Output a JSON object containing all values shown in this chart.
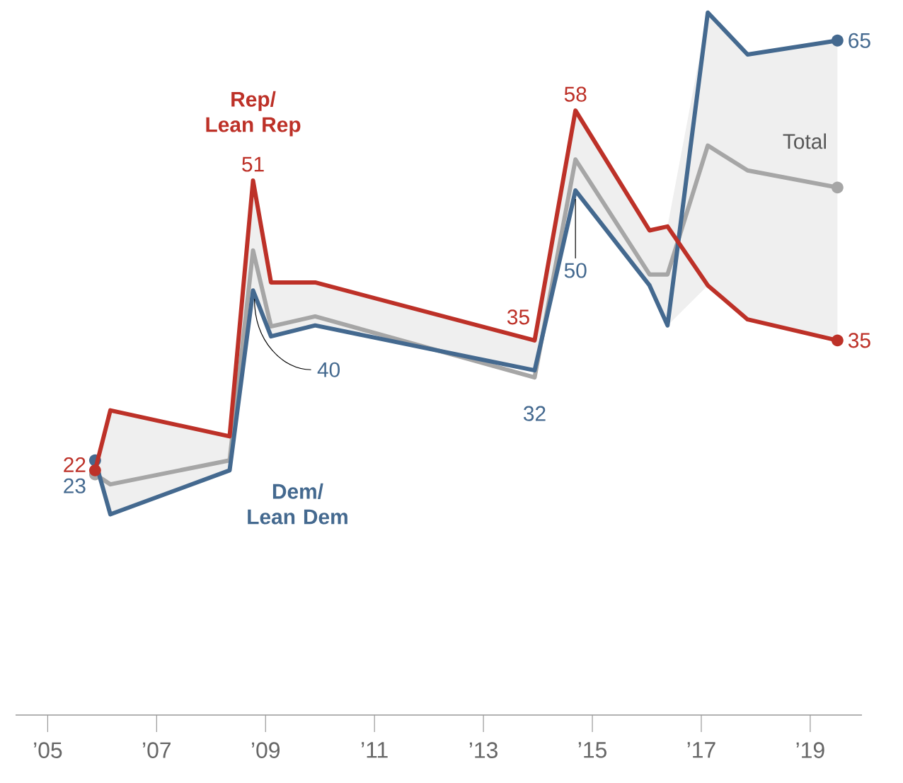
{
  "chart_data": {
    "type": "line",
    "x": [
      2005.87,
      2006.15,
      2008.34,
      2008.77,
      2009.1,
      2009.91,
      2013.94,
      2014.69,
      2016.05,
      2016.38,
      2017.12,
      2017.85,
      2019.5
    ],
    "series": [
      {
        "name": "Total",
        "color": "#a6a6a6",
        "values": [
          21.6,
          20.6,
          23,
          44,
          36.4,
          37.4,
          31.3,
          53.1,
          41.6,
          41.6,
          54.5,
          52,
          50.3
        ],
        "lower": [
          22,
          17.6,
          22,
          40,
          35.4,
          36.5,
          32,
          50,
          40.5,
          36.5,
          40.5,
          37.1,
          35
        ],
        "upper": [
          23,
          28,
          25.4,
          51,
          40.8,
          40.8,
          35,
          58,
          46,
          46.4,
          67.8,
          63.6,
          65
        ]
      },
      {
        "name": "Dem/ Lean Dem",
        "color": "#44698f",
        "values": [
          23,
          17.6,
          22,
          40,
          35.4,
          36.5,
          32,
          50,
          40.5,
          36.5,
          67.8,
          63.6,
          65
        ],
        "value_labels": [
          "23",
          null,
          null,
          "40",
          null,
          null,
          "32",
          "50",
          null,
          null,
          null,
          null,
          "65"
        ]
      },
      {
        "name": "Rep/ Lean Rep",
        "color": "#bd3128",
        "values": [
          22,
          28,
          25.4,
          51,
          40.8,
          40.8,
          35,
          58,
          46,
          46.4,
          40.5,
          37.1,
          35
        ],
        "value_labels": [
          "22",
          null,
          null,
          "51",
          null,
          null,
          "35",
          "58",
          null,
          null,
          null,
          null,
          "35"
        ]
      }
    ],
    "xlim": [
      2004.41,
      2019.95
    ],
    "xticks": [
      {
        "value": 2005,
        "label": "’05"
      },
      {
        "value": 2007,
        "label": "’07"
      },
      {
        "value": 2009,
        "label": "’09"
      },
      {
        "value": 2011,
        "label": "’11"
      },
      {
        "value": 2013,
        "label": "’13"
      },
      {
        "value": 2015,
        "label": "’15"
      },
      {
        "value": 2017,
        "label": "’17"
      },
      {
        "value": 2019,
        "label": "’19"
      }
    ],
    "tick_labels": "x",
    "grid": false,
    "line_style": "solid"
  }
}
